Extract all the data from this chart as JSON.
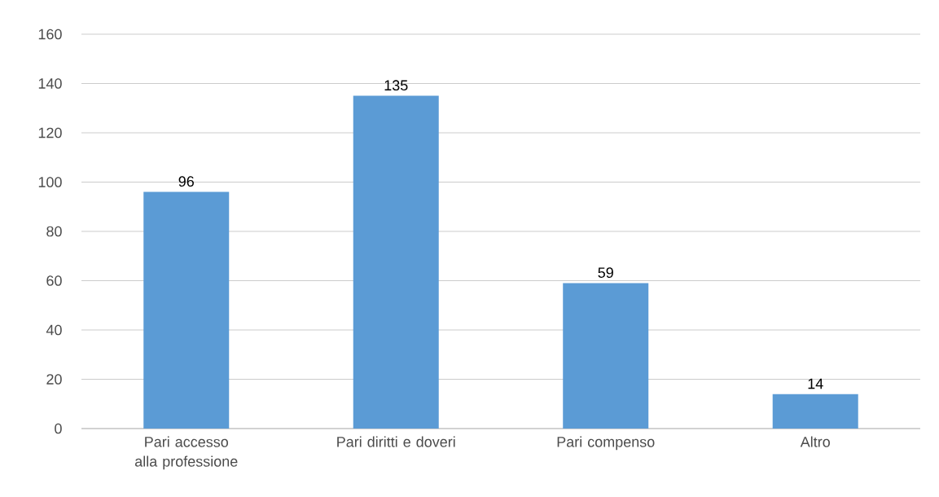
{
  "chart_data": {
    "type": "bar",
    "categories": [
      "Pari accesso alla professione",
      "Pari diritti e doveri",
      "Pari compenso",
      "Altro"
    ],
    "values": [
      96,
      135,
      59,
      14
    ],
    "color": "#5b9bd5",
    "ylim": [
      0,
      160
    ],
    "yticks": [
      0,
      20,
      40,
      60,
      80,
      100,
      120,
      140,
      160
    ],
    "grid": "y",
    "data_labels": true
  }
}
